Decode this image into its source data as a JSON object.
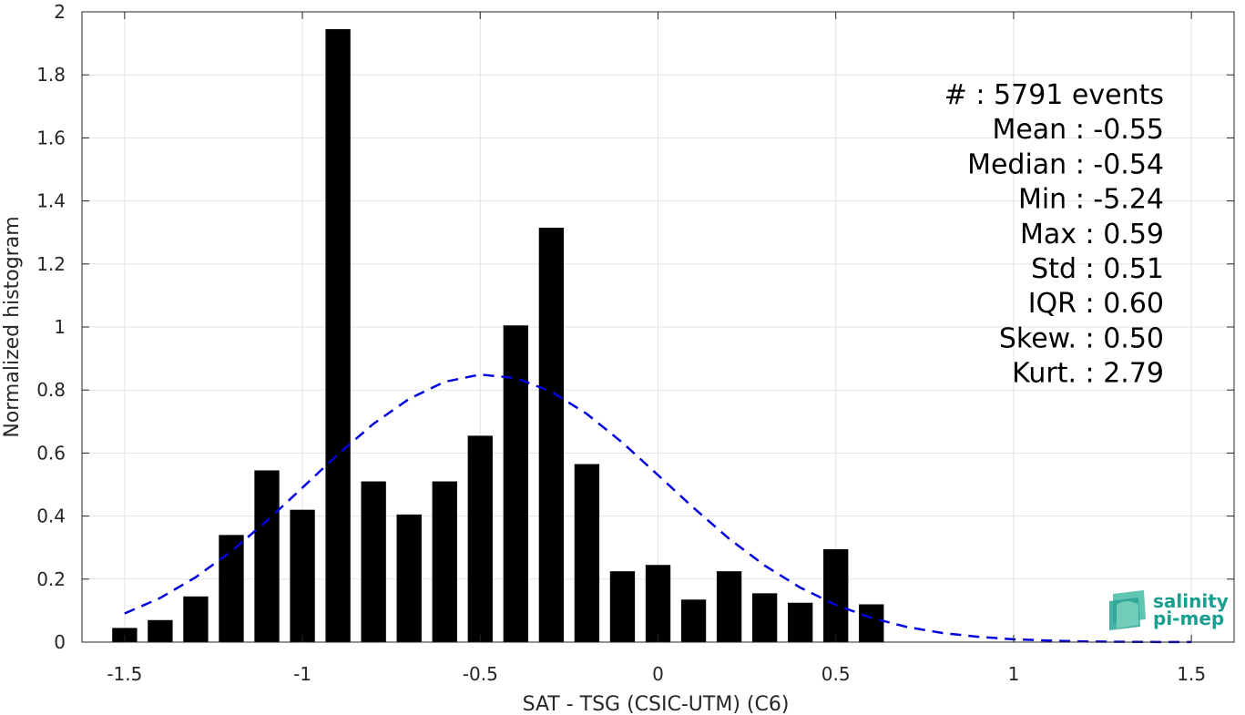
{
  "chart_data": {
    "type": "bar",
    "xlabel": "SAT - TSG (CSIC-UTM) (C6)",
    "ylabel": "Normalized histogram",
    "xlim": [
      -1.62,
      1.62
    ],
    "ylim": [
      0,
      2
    ],
    "xticks": [
      -1.5,
      -1,
      -0.5,
      0,
      0.5,
      1,
      1.5
    ],
    "xtick_labels": [
      "-1.5",
      "-1",
      "-0.5",
      "0",
      "0.5",
      "1",
      "1.5"
    ],
    "yticks": [
      0,
      0.2,
      0.4,
      0.6,
      0.8,
      1,
      1.2,
      1.4,
      1.6,
      1.8,
      2
    ],
    "ytick_labels": [
      "0",
      "0.2",
      "0.4",
      "0.6",
      "0.8",
      "1",
      "1.2",
      "1.4",
      "1.6",
      "1.8",
      "2"
    ],
    "grid": true,
    "bar_width": 0.07,
    "bar_color": "#000000",
    "bars": {
      "x": [
        -1.5,
        -1.4,
        -1.3,
        -1.2,
        -1.1,
        -1.0,
        -0.9,
        -0.8,
        -0.7,
        -0.6,
        -0.5,
        -0.4,
        -0.3,
        -0.2,
        -0.1,
        0.0,
        0.1,
        0.2,
        0.3,
        0.4,
        0.5,
        0.6
      ],
      "values": [
        0.045,
        0.07,
        0.145,
        0.34,
        0.545,
        0.42,
        1.945,
        0.51,
        0.405,
        0.51,
        0.655,
        1.005,
        1.315,
        0.565,
        0.225,
        0.245,
        0.135,
        0.225,
        0.155,
        0.125,
        0.295,
        0.12
      ]
    },
    "fit_curve": {
      "style": "dashed",
      "color": "#0000e0",
      "x": [
        -1.5,
        -1.4,
        -1.3,
        -1.2,
        -1.1,
        -1.0,
        -0.9,
        -0.8,
        -0.7,
        -0.6,
        -0.5,
        -0.4,
        -0.3,
        -0.2,
        -0.1,
        0.0,
        0.1,
        0.2,
        0.3,
        0.4,
        0.5,
        0.6,
        0.7,
        0.8,
        0.9,
        1.0,
        1.1,
        1.2,
        1.3,
        1.4,
        1.5
      ],
      "y": [
        0.091,
        0.14,
        0.206,
        0.288,
        0.385,
        0.49,
        0.596,
        0.693,
        0.772,
        0.826,
        0.849,
        0.838,
        0.795,
        0.724,
        0.633,
        0.53,
        0.426,
        0.328,
        0.243,
        0.173,
        0.118,
        0.077,
        0.048,
        0.029,
        0.017,
        0.009,
        0.005,
        0.002,
        0.001,
        0.0005,
        0.0002
      ]
    },
    "stats": [
      {
        "label": "#",
        "value": ": 5791 events"
      },
      {
        "label": "Mean",
        "value": ": -0.55"
      },
      {
        "label": "Median",
        "value": ": -0.54"
      },
      {
        "label": "Min",
        "value": ": -5.24"
      },
      {
        "label": "Max",
        "value": ": 0.59"
      },
      {
        "label": "Std",
        "value": ": 0.51"
      },
      {
        "label": "IQR",
        "value": ": 0.60"
      },
      {
        "label": "Skew.",
        "value": ": 0.50"
      },
      {
        "label": "Kurt.",
        "value": ": 2.79"
      }
    ]
  },
  "logo": {
    "line1": "salinity",
    "line2": "pi-mep",
    "color": "#1a9e8f"
  }
}
